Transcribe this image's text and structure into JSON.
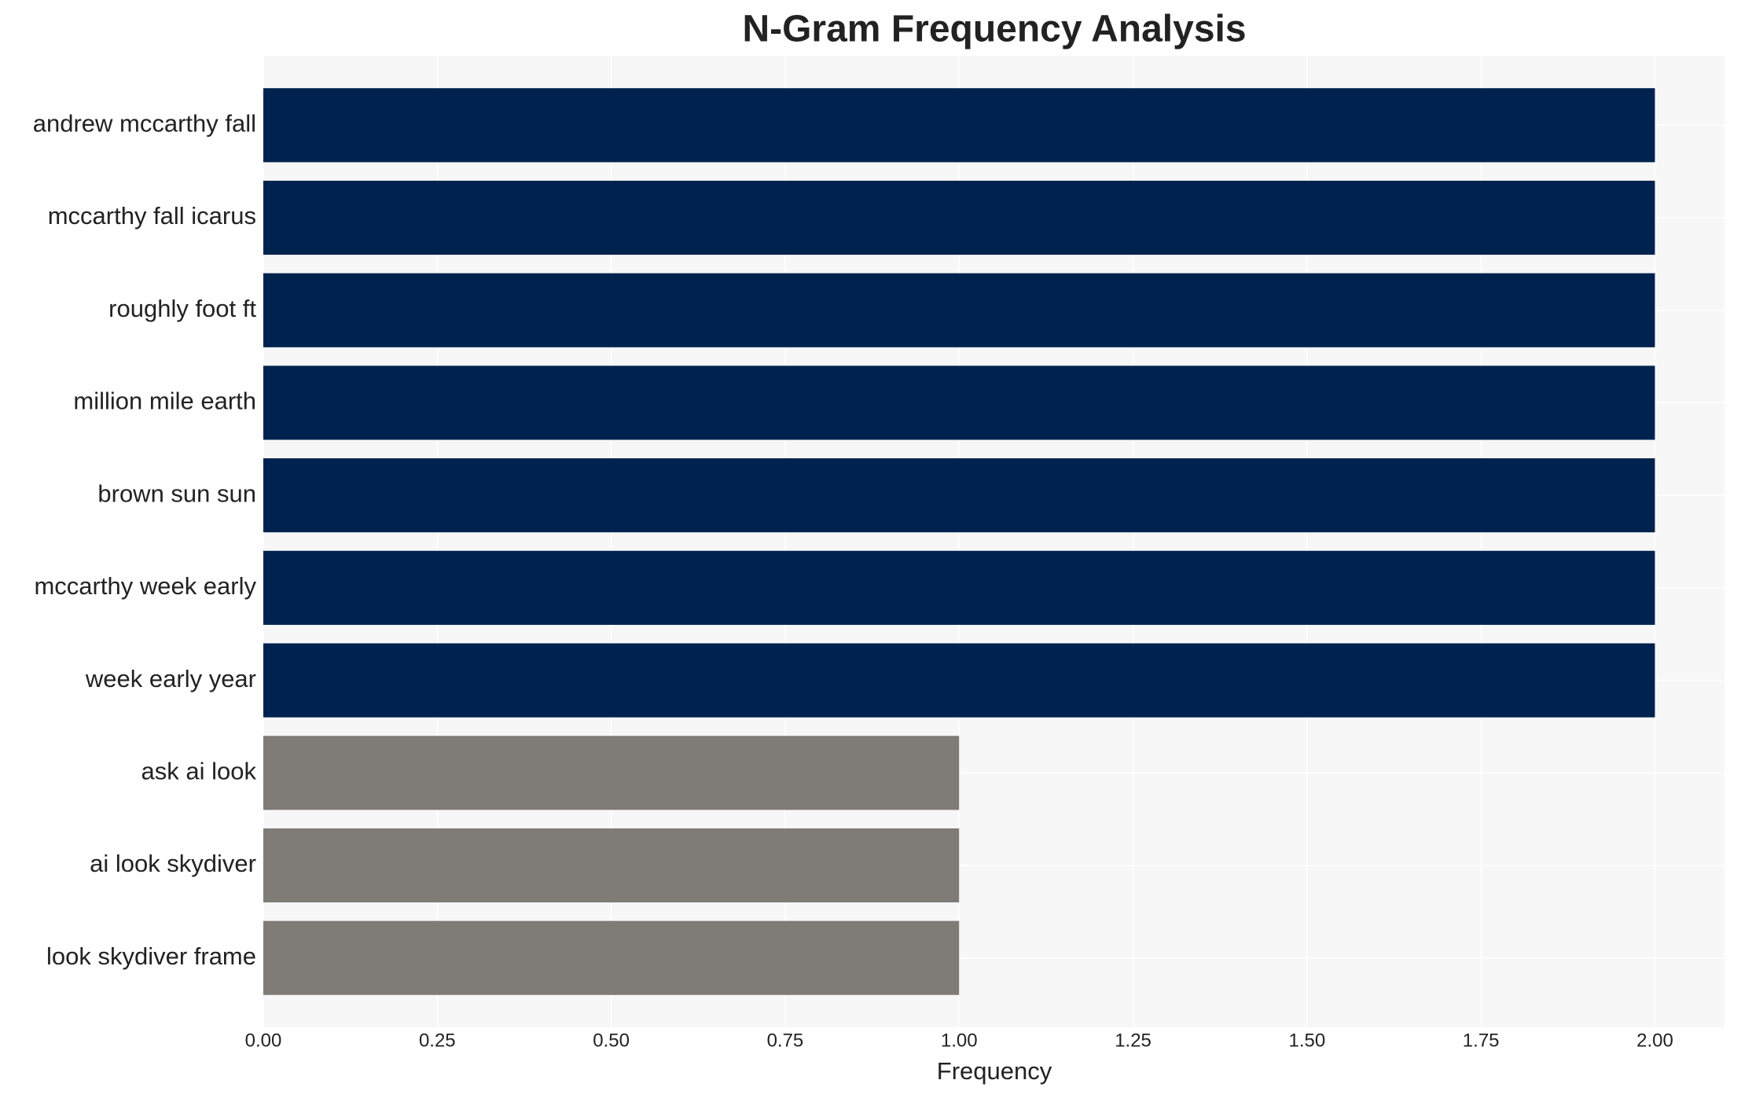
{
  "chart_data": {
    "type": "bar",
    "orientation": "horizontal",
    "title": "N-Gram Frequency Analysis",
    "x_label": "Frequency",
    "categories": [
      "andrew mccarthy fall",
      "mccarthy fall icarus",
      "roughly foot ft",
      "million mile earth",
      "brown sun sun",
      "mccarthy week early",
      "week early year",
      "ask ai look",
      "ai look skydiver",
      "look skydiver frame"
    ],
    "values": [
      2,
      2,
      2,
      2,
      2,
      2,
      2,
      1,
      1,
      1
    ],
    "colors": [
      "#00224e",
      "#00224e",
      "#00224e",
      "#00224e",
      "#00224e",
      "#00224e",
      "#00224e",
      "#7f7c78",
      "#7f7c78",
      "#7f7c78"
    ],
    "xlim": [
      0,
      2.1
    ],
    "xticks": [
      {
        "value": 0,
        "label": "0.00"
      },
      {
        "value": 0.25,
        "label": "0.25"
      },
      {
        "value": 0.5,
        "label": "0.50"
      },
      {
        "value": 0.75,
        "label": "0.75"
      },
      {
        "value": 1,
        "label": "1.00"
      },
      {
        "value": 1.25,
        "label": "1.25"
      },
      {
        "value": 1.5,
        "label": "1.50"
      },
      {
        "value": 1.75,
        "label": "1.75"
      },
      {
        "value": 2,
        "label": "2.00"
      }
    ],
    "grid": true
  }
}
